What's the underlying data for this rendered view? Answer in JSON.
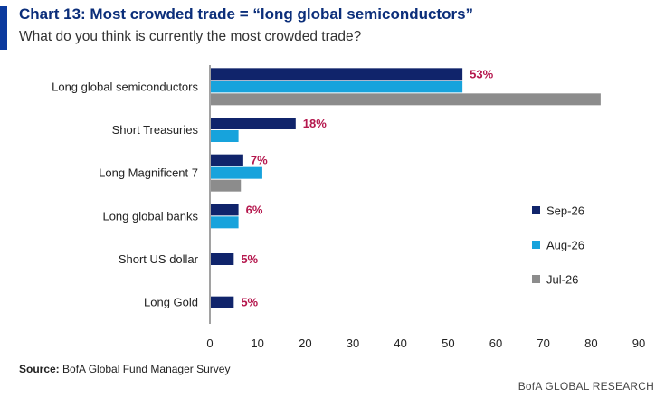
{
  "header": {
    "title": "Chart 13: Most crowded trade = “long global semiconductors”",
    "subtitle": "What do you think is currently the most crowded trade?"
  },
  "footer": {
    "source_label": "Source:",
    "source_text": " BofA Global Fund Manager Survey",
    "brand": "BofA GLOBAL RESEARCH"
  },
  "colors": {
    "sep": "#10246b",
    "aug": "#17a3dc",
    "jul": "#8c8c8c",
    "label": "#b5174d"
  },
  "chart_data": {
    "type": "bar",
    "orientation": "horizontal",
    "title": "Chart 13: Most crowded trade = “long global semiconductors”",
    "subtitle": "What do you think is currently the most crowded trade?",
    "categories": [
      "Long global semiconductors",
      "Short Treasuries",
      "Long Magnificent 7",
      "Long global banks",
      "Short US dollar",
      "Long Gold"
    ],
    "series": [
      {
        "name": "Sep-26",
        "values": [
          53,
          18,
          7,
          6,
          5,
          5
        ]
      },
      {
        "name": "Aug-26",
        "values": [
          53,
          6,
          11,
          6,
          null,
          null
        ]
      },
      {
        "name": "Jul-26",
        "values": [
          82,
          null,
          6.5,
          null,
          null,
          null
        ]
      }
    ],
    "data_labels": [
      "53%",
      "18%",
      "7%",
      "6%",
      "5%",
      "5%"
    ],
    "xlim": [
      0,
      90
    ],
    "xticks": [
      0,
      10,
      20,
      30,
      40,
      50,
      60,
      70,
      80,
      90
    ],
    "grid": false,
    "legend_position": "right"
  }
}
